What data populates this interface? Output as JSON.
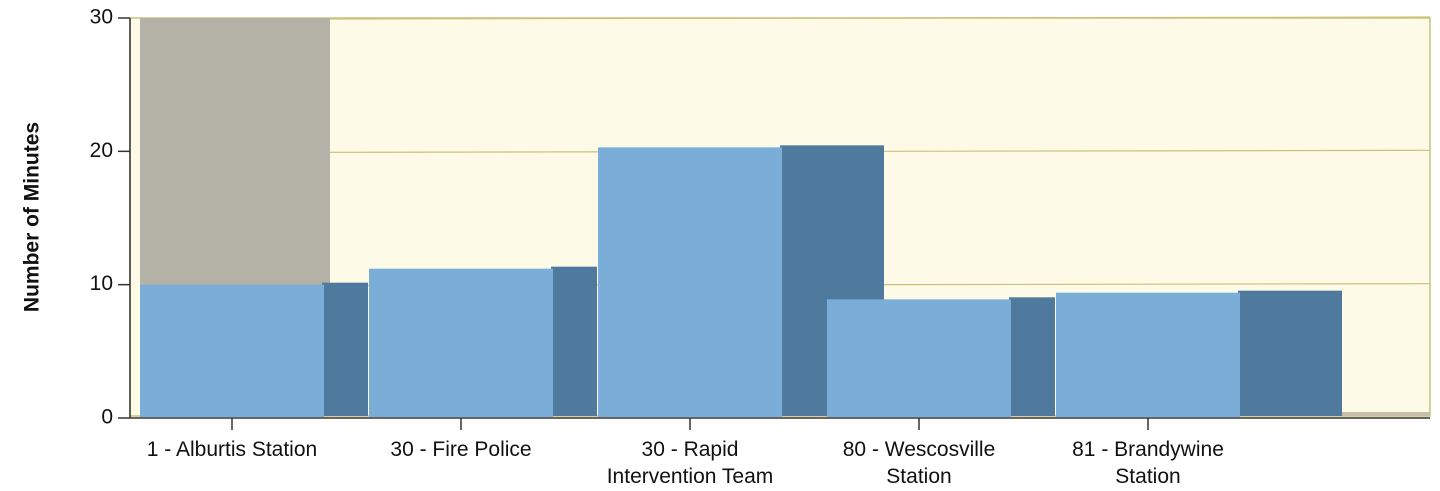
{
  "chart_data": {
    "type": "bar",
    "title": "",
    "xlabel": "",
    "ylabel": "Number of Minutes",
    "ylim": [
      0,
      30
    ],
    "yticks": [
      0,
      10,
      20,
      30
    ],
    "grid": true,
    "categories": [
      [
        "1 - Alburtis Station"
      ],
      [
        "30 - Fire Police"
      ],
      [
        "30 - Rapid",
        "Intervention Team"
      ],
      [
        "80 - Wescosville",
        "Station"
      ],
      [
        "81 - Brandywine",
        "Station"
      ]
    ],
    "values": [
      10,
      11.2,
      20.3,
      8.9,
      9.4
    ]
  },
  "colors": {
    "plot_bg": "#fdfbe8",
    "grid": "#c9c27a",
    "bar_front": "#7badd9",
    "bar_side": "#4f7a9e",
    "wall": "#b4b2a6",
    "floor": "#c8bfaa",
    "axis": "#333333",
    "text": "#111111"
  }
}
